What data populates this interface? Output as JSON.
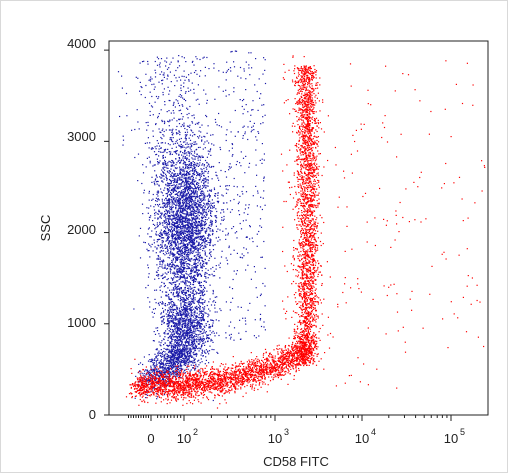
{
  "chart_data": {
    "type": "scatter",
    "title": "",
    "xlabel": "CD58 FITC",
    "ylabel": "SSC",
    "xscale": "biexponential (log above ~10^2, linear near 0)",
    "xlim": [
      -100,
      250000
    ],
    "ylim": [
      0,
      4100
    ],
    "x_tick_labels": [
      "0",
      "10^2",
      "10^3",
      "10^4",
      "10^5"
    ],
    "x_ticks": [
      0,
      100,
      1000,
      10000,
      100000
    ],
    "y_ticks": [
      0,
      1000,
      2000,
      3000,
      4000
    ],
    "y_tick_labels": [
      "0",
      "1000",
      "2000",
      "3000",
      "4000"
    ],
    "grid": false,
    "legend": "none",
    "series": [
      {
        "color": "#1a1aa8",
        "description_points": [
          {
            "x": 100,
            "y": 2100,
            "note": "dense cluster center"
          },
          {
            "x": 100,
            "y": 2700
          },
          {
            "x": 95,
            "y": 1500
          },
          {
            "x": 100,
            "y": 900
          },
          {
            "x": 40,
            "y": 400
          },
          {
            "x": 500,
            "y": 3800
          }
        ]
      },
      {
        "color": "#ff0000",
        "description_points": [
          {
            "x": 20,
            "y": 350
          },
          {
            "x": 200,
            "y": 380
          },
          {
            "x": 800,
            "y": 450
          },
          {
            "x": 1700,
            "y": 700
          },
          {
            "x": 2000,
            "y": 1500
          },
          {
            "x": 1900,
            "y": 2300
          },
          {
            "x": 1800,
            "y": 3000
          },
          {
            "x": 1600,
            "y": 3800
          },
          {
            "x": 30000,
            "y": 2500
          }
        ]
      }
    ]
  },
  "axis": {
    "y_labels": [
      "0",
      "1000",
      "2000",
      "3000",
      "4000"
    ],
    "x_base_labels": [
      "0",
      "10",
      "10",
      "10",
      "10"
    ],
    "x_exponents": [
      "",
      "2",
      "3",
      "4",
      "5"
    ],
    "x_title": "CD58 FITC",
    "y_title": "SSC"
  },
  "colors": {
    "population_1": "#1a1aa8",
    "population_2": "#ff0000",
    "axis": "#222222"
  }
}
